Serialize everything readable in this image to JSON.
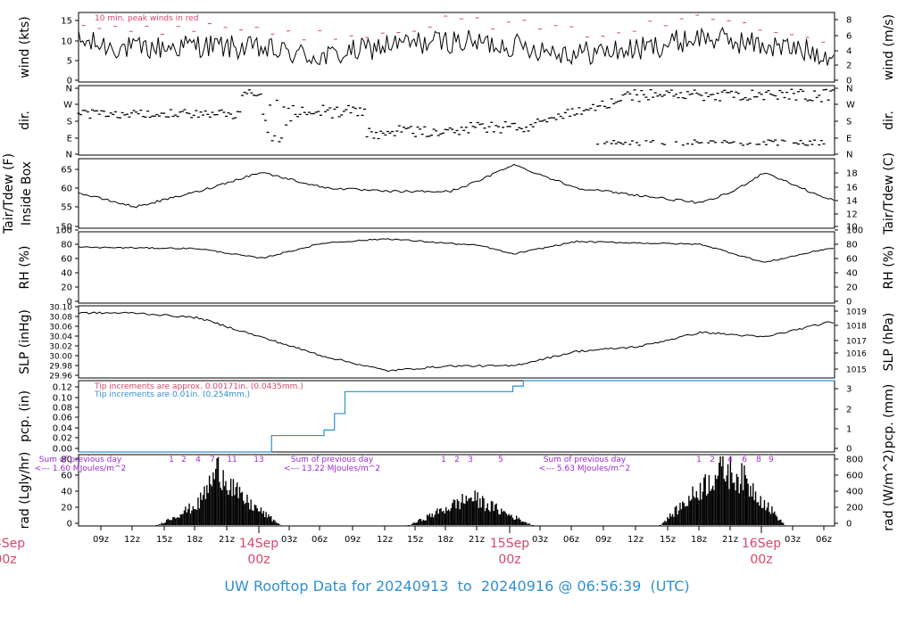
{
  "footer": {
    "prefix": "UW Rooftop Data for",
    "start": "20240913",
    "to": "to",
    "end": "20240916",
    "at": "@",
    "time": "06:56:39",
    "tz": "(UTC)"
  },
  "colors": {
    "red": "#d8456b",
    "blue": "#2f8fd0",
    "purple": "#9a2bd0",
    "black": "#000000"
  },
  "panels": [
    {
      "id": "wind",
      "left_label": "wind (kts)",
      "right_label": "wind (m/s)",
      "left_ticks": [
        "0",
        "5",
        "10",
        "15"
      ],
      "right_ticks": [
        "0",
        "2",
        "4",
        "6",
        "8"
      ],
      "annotation": "10 min. peak winds in red"
    },
    {
      "id": "dir",
      "left_label": "dir.",
      "right_label": "dir.",
      "left_ticks": [
        "N",
        "E",
        "S",
        "W",
        "N"
      ],
      "right_ticks": [
        "N",
        "E",
        "S",
        "W",
        "N"
      ]
    },
    {
      "id": "temp",
      "left_label": "Tair/Tdew (F)",
      "left_label2": "Inside Box",
      "right_label": "Tair/Tdew (C)",
      "left_ticks": [
        "50",
        "55",
        "60",
        "65"
      ],
      "right_ticks": [
        "10",
        "12",
        "14",
        "16",
        "18"
      ]
    },
    {
      "id": "rh",
      "left_label": "RH (%)",
      "right_label": "RH (%)",
      "left_ticks": [
        "0",
        "20",
        "40",
        "60",
        "80",
        "100"
      ],
      "right_ticks": [
        "0",
        "20",
        "40",
        "60",
        "80",
        "100"
      ]
    },
    {
      "id": "slp",
      "left_label": "SLP (inHg)",
      "right_label": "SLP (hPa)",
      "left_ticks": [
        "29.96",
        "29.98",
        "30.00",
        "30.02",
        "30.04",
        "30.06",
        "30.08",
        "30.10"
      ],
      "right_ticks": [
        "1015",
        "1016",
        "1017",
        "1018",
        "1019"
      ]
    },
    {
      "id": "pcp",
      "left_label": "pcp. (in)",
      "right_label": "pcp. (mm)",
      "left_ticks": [
        "0.00",
        "0.02",
        "0.04",
        "0.06",
        "0.08",
        "0.10",
        "0.12"
      ],
      "right_ticks": [
        "0",
        "1",
        "2",
        "3"
      ],
      "note_red": "Tip increments are approx. 0.00171in. (0.0435mm.)",
      "note_blue": "Tip increments are 0.01in. (0.254mm.)"
    },
    {
      "id": "rad",
      "left_label": "rad (Lgly/hr)",
      "right_label": "rad (W/m^2)",
      "left_ticks": [
        "0",
        "20",
        "40",
        "60",
        "80"
      ],
      "right_ticks": [
        "0",
        "200",
        "400",
        "600",
        "800"
      ]
    }
  ],
  "radiation_notes": [
    {
      "line1": "Sum of previous day",
      "line2": "<--- 1.60 MJoules/m^2"
    },
    {
      "line1": "Sum of previous day",
      "line2": "<--- 13.22 MJoules/m^2"
    },
    {
      "line1": "Sum of previous day",
      "line2": "<--- 5.63 MJoules/m^2"
    }
  ],
  "radiation_markers": [
    [
      "1",
      "2",
      "4",
      "7",
      "11",
      "13"
    ],
    [
      "1",
      "2",
      "3",
      "5"
    ],
    [
      "1",
      "2",
      "4",
      "6",
      "8",
      "9"
    ]
  ],
  "x_axis": {
    "hour_ticks": [
      "09z",
      "12z",
      "15z",
      "18z",
      "21z",
      "03z",
      "06z",
      "09z",
      "12z",
      "15z",
      "18z",
      "21z",
      "03z",
      "06z",
      "09z",
      "12z",
      "15z",
      "18z",
      "21z",
      "03z",
      "06z"
    ],
    "day_labels": [
      {
        "date": "13Sep",
        "hour": "00z"
      },
      {
        "date": "14Sep",
        "hour": "00z"
      },
      {
        "date": "15Sep",
        "hour": "00z"
      },
      {
        "date": "16Sep",
        "hour": "00z"
      }
    ]
  },
  "chart_data": [
    {
      "type": "line",
      "title": "",
      "ylabel": "wind (kts)",
      "y2label": "wind (m/s)",
      "ylim": [
        0,
        17
      ],
      "x": [
        "2024-09-13T06",
        "2024-09-13T12",
        "2024-09-13T18",
        "2024-09-14T00",
        "2024-09-14T06",
        "2024-09-14T12",
        "2024-09-14T18",
        "2024-09-15T00",
        "2024-09-15T06",
        "2024-09-15T12",
        "2024-09-15T18",
        "2024-09-16T00",
        "2024-09-16T06"
      ],
      "series": [
        {
          "name": "",
          "values": [
            10,
            8,
            9,
            8,
            6,
            9,
            10,
            9,
            7,
            8,
            11,
            9,
            7
          ]
        },
        {
          "name": "10 min. peak winds",
          "values": [
            14,
            12,
            14,
            13,
            11,
            13,
            15,
            14,
            12,
            13,
            16,
            14,
            11
          ]
        }
      ]
    },
    {
      "type": "scatter",
      "ylabel": "dir.",
      "ylim": [
        "N",
        "N"
      ]
    },
    {
      "type": "line",
      "ylabel": "Tair/Tdew (F)",
      "y2label": "Tair/Tdew (C)",
      "ylim": [
        50,
        67
      ],
      "x": [
        "2024-09-13T06",
        "2024-09-13T12",
        "2024-09-13T18",
        "2024-09-14T00",
        "2024-09-14T06",
        "2024-09-14T12",
        "2024-09-14T18",
        "2024-09-14T21",
        "2024-09-15T00",
        "2024-09-15T06",
        "2024-09-15T12",
        "2024-09-15T18",
        "2024-09-15T21",
        "2024-09-16T00",
        "2024-09-16T06"
      ],
      "series": [
        {
          "name": "",
          "values": [
            59,
            55,
            59,
            64,
            60,
            59,
            59,
            62,
            66,
            60,
            58,
            56,
            59,
            64,
            57
          ]
        }
      ]
    },
    {
      "type": "line",
      "ylabel": "RH (%)",
      "ylim": [
        0,
        100
      ],
      "x": [
        "2024-09-13T06",
        "2024-09-13T18",
        "2024-09-14T00",
        "2024-09-14T06",
        "2024-09-14T12",
        "2024-09-14T21",
        "2024-09-15T00",
        "2024-09-15T06",
        "2024-09-15T18",
        "2024-09-16T00",
        "2024-09-16T06"
      ],
      "series": [
        {
          "name": "",
          "values": [
            80,
            78,
            64,
            86,
            92,
            82,
            70,
            88,
            84,
            58,
            78
          ]
        }
      ]
    },
    {
      "type": "line",
      "ylabel": "SLP (inHg)",
      "y2label": "SLP (hPa)",
      "ylim": [
        29.96,
        30.1
      ],
      "x": [
        "2024-09-13T06",
        "2024-09-13T12",
        "2024-09-13T18",
        "2024-09-14T00",
        "2024-09-14T06",
        "2024-09-14T12",
        "2024-09-14T18",
        "2024-09-15T00",
        "2024-09-15T06",
        "2024-09-15T12",
        "2024-09-15T18",
        "2024-09-16T00",
        "2024-09-16T06"
      ],
      "series": [
        {
          "name": "",
          "values": [
            30.09,
            30.09,
            30.08,
            30.04,
            30.0,
            29.97,
            29.98,
            29.98,
            30.01,
            30.02,
            30.05,
            30.04,
            30.07
          ]
        }
      ]
    },
    {
      "type": "line",
      "ylabel": "pcp. (in)",
      "y2label": "pcp. (mm)",
      "ylim": [
        0,
        0.13
      ],
      "x": [
        "2024-09-13T06",
        "2024-09-14T00",
        "2024-09-14T01",
        "2024-09-14T06",
        "2024-09-14T07",
        "2024-09-14T08",
        "2024-09-15T00",
        "2024-09-15T01",
        "2024-09-16T06"
      ],
      "series": [
        {
          "name": "",
          "values": [
            0.0,
            0.0,
            0.03,
            0.04,
            0.07,
            0.11,
            0.12,
            0.13,
            0.13
          ]
        }
      ]
    },
    {
      "type": "area",
      "ylabel": "rad (Lgly/hr)",
      "y2label": "rad (W/m^2)",
      "ylim": [
        0,
        80
      ],
      "x": [
        "2024-09-13T14",
        "2024-09-13T18",
        "2024-09-13T20",
        "2024-09-13T22",
        "2024-09-14T02",
        "2024-09-14T14",
        "2024-09-14T20",
        "2024-09-15T02",
        "2024-09-15T14",
        "2024-09-15T20",
        "2024-09-15T22",
        "2024-09-16T02"
      ],
      "series": [
        {
          "name": "",
          "values": [
            0,
            30,
            80,
            40,
            0,
            0,
            40,
            0,
            0,
            80,
            65,
            0
          ]
        }
      ]
    }
  ]
}
